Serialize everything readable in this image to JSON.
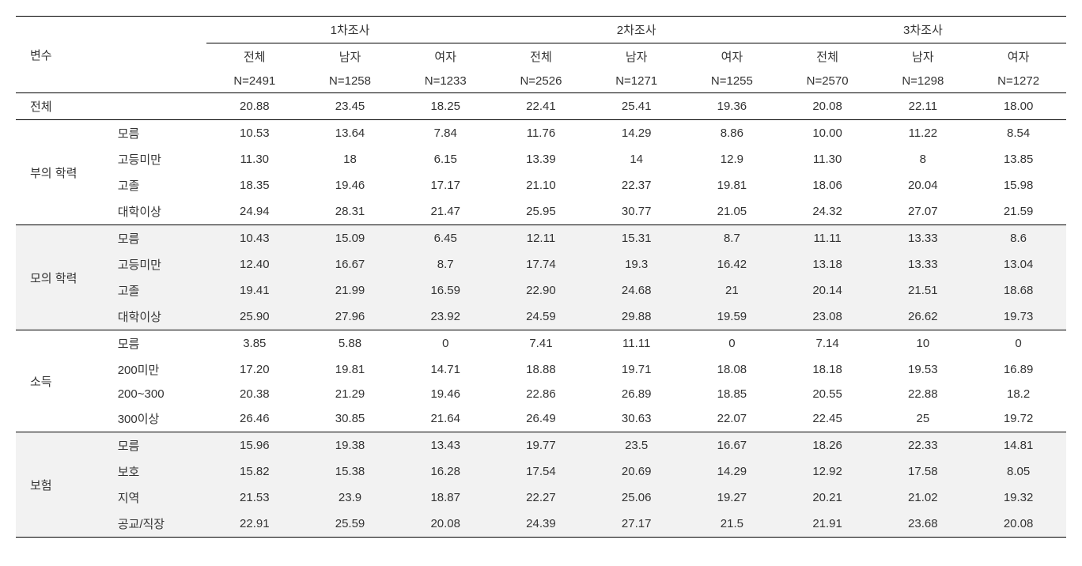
{
  "headers": {
    "variable_label": "변수",
    "surveys": {
      "s1": "1차조사",
      "s2": "2차조사",
      "s3": "3차조사"
    },
    "sub": {
      "total": "전체",
      "male": "남자",
      "female": "여자"
    },
    "n": {
      "s1": {
        "t": "N=2491",
        "m": "N=1258",
        "f": "N=1233"
      },
      "s2": {
        "t": "N=2526",
        "m": "N=1271",
        "f": "N=1255"
      },
      "s3": {
        "t": "N=2570",
        "m": "N=1298",
        "f": "N=1272"
      }
    }
  },
  "total_row": {
    "label": "전체",
    "s1": {
      "t": "20.88",
      "m": "23.45",
      "f": "18.25"
    },
    "s2": {
      "t": "22.41",
      "m": "25.41",
      "f": "19.36"
    },
    "s3": {
      "t": "20.08",
      "m": "22.11",
      "f": "18.00"
    }
  },
  "groups": [
    {
      "label": "부의 학력",
      "shade": false,
      "rows": [
        {
          "label": "모름",
          "s1": {
            "t": "10.53",
            "m": "13.64",
            "f": "7.84"
          },
          "s2": {
            "t": "11.76",
            "m": "14.29",
            "f": "8.86"
          },
          "s3": {
            "t": "10.00",
            "m": "11.22",
            "f": "8.54"
          }
        },
        {
          "label": "고등미만",
          "s1": {
            "t": "11.30",
            "m": "18",
            "f": "6.15"
          },
          "s2": {
            "t": "13.39",
            "m": "14",
            "f": "12.9"
          },
          "s3": {
            "t": "11.30",
            "m": "8",
            "f": "13.85"
          }
        },
        {
          "label": "고졸",
          "s1": {
            "t": "18.35",
            "m": "19.46",
            "f": "17.17"
          },
          "s2": {
            "t": "21.10",
            "m": "22.37",
            "f": "19.81"
          },
          "s3": {
            "t": "18.06",
            "m": "20.04",
            "f": "15.98"
          }
        },
        {
          "label": "대학이상",
          "s1": {
            "t": "24.94",
            "m": "28.31",
            "f": "21.47"
          },
          "s2": {
            "t": "25.95",
            "m": "30.77",
            "f": "21.05"
          },
          "s3": {
            "t": "24.32",
            "m": "27.07",
            "f": "21.59"
          }
        }
      ]
    },
    {
      "label": "모의 학력",
      "shade": true,
      "rows": [
        {
          "label": "모름",
          "s1": {
            "t": "10.43",
            "m": "15.09",
            "f": "6.45"
          },
          "s2": {
            "t": "12.11",
            "m": "15.31",
            "f": "8.7"
          },
          "s3": {
            "t": "11.11",
            "m": "13.33",
            "f": "8.6"
          }
        },
        {
          "label": "고등미만",
          "s1": {
            "t": "12.40",
            "m": "16.67",
            "f": "8.7"
          },
          "s2": {
            "t": "17.74",
            "m": "19.3",
            "f": "16.42"
          },
          "s3": {
            "t": "13.18",
            "m": "13.33",
            "f": "13.04"
          }
        },
        {
          "label": "고졸",
          "s1": {
            "t": "19.41",
            "m": "21.99",
            "f": "16.59"
          },
          "s2": {
            "t": "22.90",
            "m": "24.68",
            "f": "21"
          },
          "s3": {
            "t": "20.14",
            "m": "21.51",
            "f": "18.68"
          }
        },
        {
          "label": "대학이상",
          "s1": {
            "t": "25.90",
            "m": "27.96",
            "f": "23.92"
          },
          "s2": {
            "t": "24.59",
            "m": "29.88",
            "f": "19.59"
          },
          "s3": {
            "t": "23.08",
            "m": "26.62",
            "f": "19.73"
          }
        }
      ]
    },
    {
      "label": "소득",
      "shade": false,
      "rows": [
        {
          "label": "모름",
          "s1": {
            "t": "3.85",
            "m": "5.88",
            "f": "0"
          },
          "s2": {
            "t": "7.41",
            "m": "11.11",
            "f": "0"
          },
          "s3": {
            "t": "7.14",
            "m": "10",
            "f": "0"
          }
        },
        {
          "label": "200미만",
          "s1": {
            "t": "17.20",
            "m": "19.81",
            "f": "14.71"
          },
          "s2": {
            "t": "18.88",
            "m": "19.71",
            "f": "18.08"
          },
          "s3": {
            "t": "18.18",
            "m": "19.53",
            "f": "16.89"
          }
        },
        {
          "label": "200~300",
          "s1": {
            "t": "20.38",
            "m": "21.29",
            "f": "19.46"
          },
          "s2": {
            "t": "22.86",
            "m": "26.89",
            "f": "18.85"
          },
          "s3": {
            "t": "20.55",
            "m": "22.88",
            "f": "18.2"
          }
        },
        {
          "label": "300이상",
          "s1": {
            "t": "26.46",
            "m": "30.85",
            "f": "21.64"
          },
          "s2": {
            "t": "26.49",
            "m": "30.63",
            "f": "22.07"
          },
          "s3": {
            "t": "22.45",
            "m": "25",
            "f": "19.72"
          }
        }
      ]
    },
    {
      "label": "보험",
      "shade": true,
      "rows": [
        {
          "label": "모름",
          "s1": {
            "t": "15.96",
            "m": "19.38",
            "f": "13.43"
          },
          "s2": {
            "t": "19.77",
            "m": "23.5",
            "f": "16.67"
          },
          "s3": {
            "t": "18.26",
            "m": "22.33",
            "f": "14.81"
          }
        },
        {
          "label": "보호",
          "s1": {
            "t": "15.82",
            "m": "15.38",
            "f": "16.28"
          },
          "s2": {
            "t": "17.54",
            "m": "20.69",
            "f": "14.29"
          },
          "s3": {
            "t": "12.92",
            "m": "17.58",
            "f": "8.05"
          }
        },
        {
          "label": "지역",
          "s1": {
            "t": "21.53",
            "m": "23.9",
            "f": "18.87"
          },
          "s2": {
            "t": "22.27",
            "m": "25.06",
            "f": "19.27"
          },
          "s3": {
            "t": "20.21",
            "m": "21.02",
            "f": "19.32"
          }
        },
        {
          "label": "공교/직장",
          "s1": {
            "t": "22.91",
            "m": "25.59",
            "f": "20.08"
          },
          "s2": {
            "t": "24.39",
            "m": "27.17",
            "f": "21.5"
          },
          "s3": {
            "t": "21.91",
            "m": "23.68",
            "f": "20.08"
          }
        }
      ]
    }
  ]
}
